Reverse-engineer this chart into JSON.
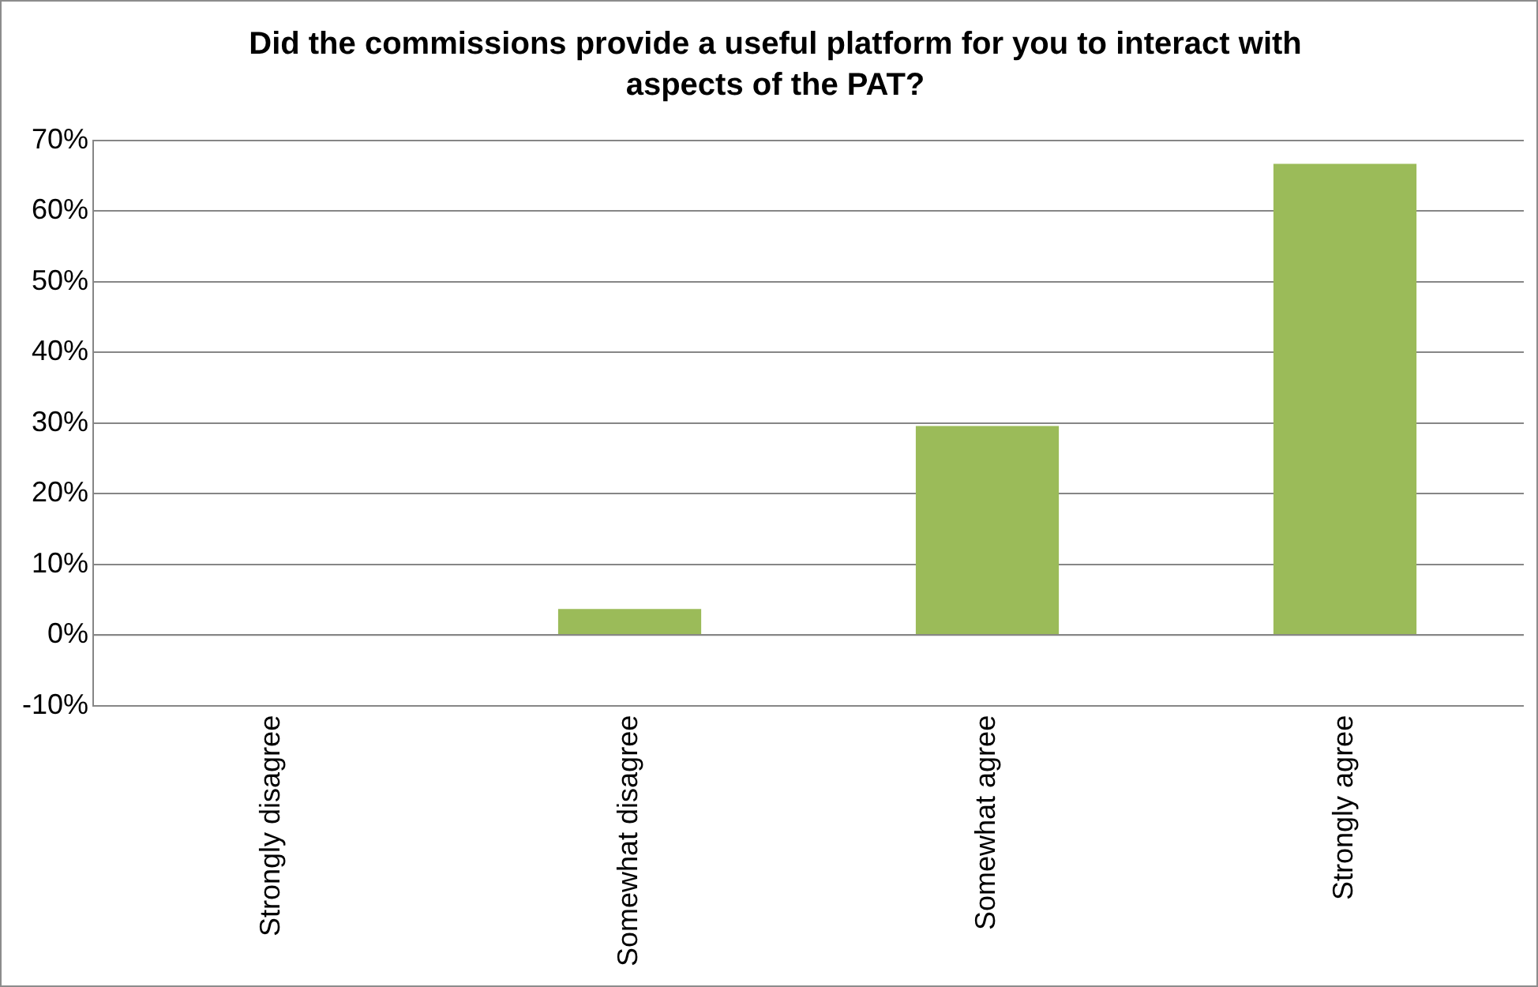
{
  "chart_data": {
    "type": "bar",
    "title": "Did the commissions provide a useful platform for you to interact with aspects of the PAT?",
    "categories": [
      "Strongly disagree",
      "Somewhat disagree",
      "Somewhat agree",
      "Strongly agree"
    ],
    "values": [
      0,
      3.7,
      29.6,
      66.7
    ],
    "color": "#9bbb59",
    "ylim": [
      -10,
      70
    ],
    "yticks": [
      {
        "value": -10,
        "label": "-10%"
      },
      {
        "value": 0,
        "label": "0%"
      },
      {
        "value": 10,
        "label": "10%"
      },
      {
        "value": 20,
        "label": "20%"
      },
      {
        "value": 30,
        "label": "30%"
      },
      {
        "value": 40,
        "label": "40%"
      },
      {
        "value": 50,
        "label": "50%"
      },
      {
        "value": 60,
        "label": "60%"
      },
      {
        "value": 70,
        "label": "70%"
      }
    ],
    "grid": "y",
    "legend": false
  }
}
